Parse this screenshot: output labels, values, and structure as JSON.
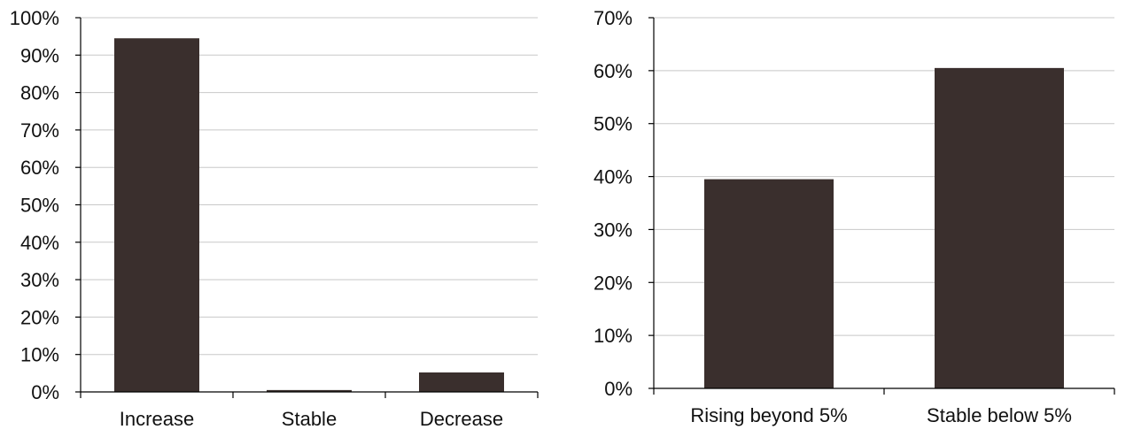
{
  "chart_data": [
    {
      "type": "bar",
      "categories": [
        "Increase",
        "Stable",
        "Decrease"
      ],
      "values": [
        94.5,
        0.5,
        5.2
      ],
      "ylim": [
        0,
        100
      ],
      "ytick_step": 10,
      "ytick_labels": [
        "0%",
        "10%",
        "20%",
        "30%",
        "40%",
        "50%",
        "60%",
        "70%",
        "80%",
        "90%",
        "100%"
      ],
      "grid": true,
      "bar_color": "#3a2f2d",
      "grid_color": "#c8c8c8"
    },
    {
      "type": "bar",
      "categories": [
        "Rising beyond 5%",
        "Stable below 5%"
      ],
      "values": [
        39.5,
        60.5
      ],
      "ylim": [
        0,
        70
      ],
      "ytick_step": 10,
      "ytick_labels": [
        "0%",
        "10%",
        "20%",
        "30%",
        "40%",
        "50%",
        "60%",
        "70%"
      ],
      "grid": true,
      "bar_color": "#3a2f2d",
      "grid_color": "#c8c8c8"
    }
  ]
}
